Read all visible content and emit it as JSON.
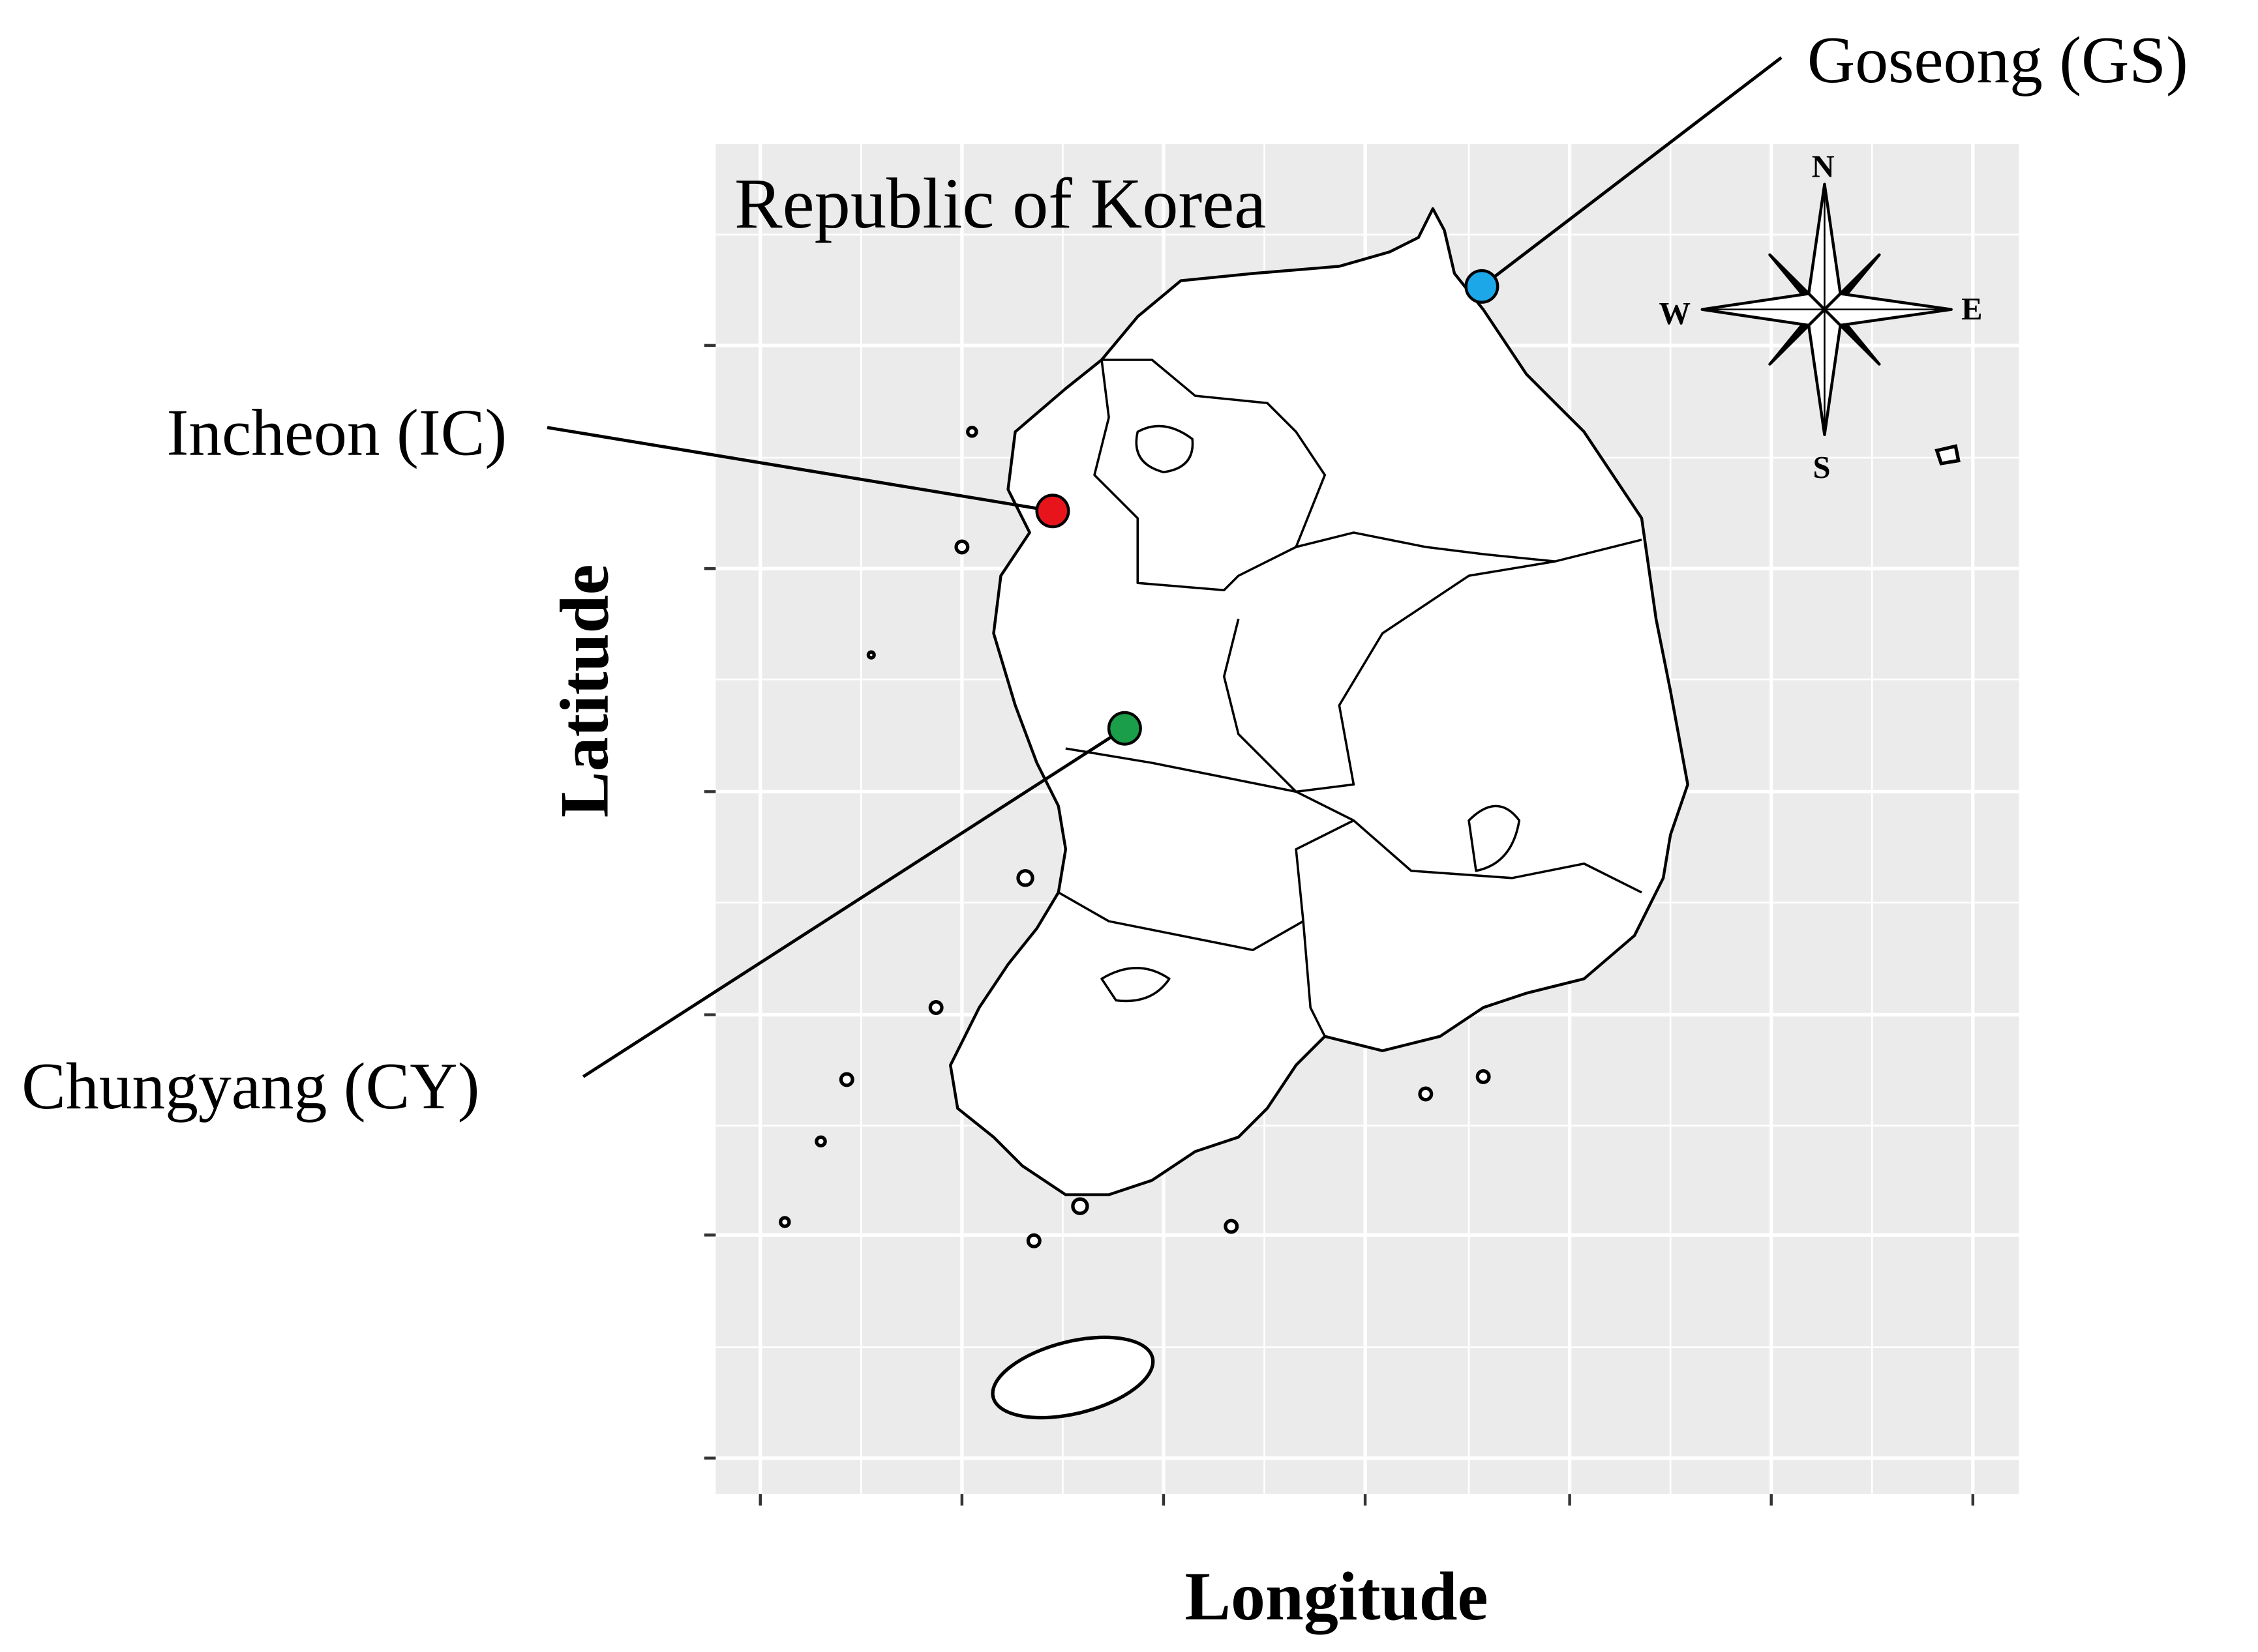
{
  "title": "Republic of Korea",
  "axes": {
    "x_label": "Longitude",
    "y_label": "Latitude"
  },
  "sites": [
    {
      "label": "Goseong (GS)",
      "color": "#1ca7e8"
    },
    {
      "label": "Incheon (IC)",
      "color": "#e8141c"
    },
    {
      "label": "Chungyang (CY)",
      "color": "#1a9e4a"
    }
  ],
  "compass": {
    "north": "N",
    "south": "S",
    "east": "E",
    "west": "W"
  }
}
